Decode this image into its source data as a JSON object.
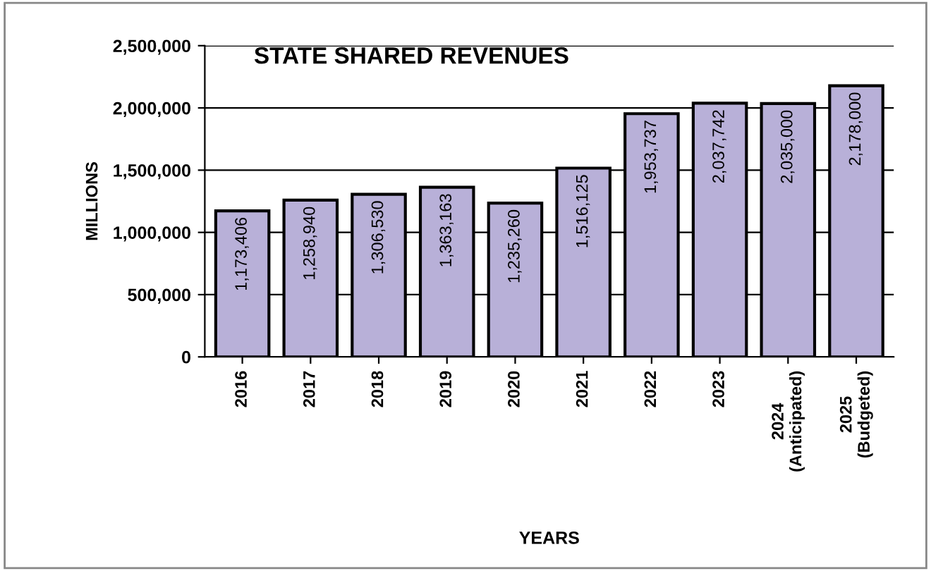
{
  "chart_data": {
    "type": "bar",
    "title": "STATE SHARED REVENUES",
    "xlabel": "YEARS",
    "ylabel": "MILLIONS",
    "categories": [
      "2016",
      "2017",
      "2018",
      "2019",
      "2020",
      "2021",
      "2022",
      "2023",
      "2024\n(Anticipated)",
      "2025\n(Budgeted)"
    ],
    "values": [
      1173406,
      1258940,
      1306530,
      1363163,
      1235260,
      1516125,
      1953737,
      2037742,
      2035000,
      2178000
    ],
    "color": "#b8b0d8",
    "ylim": [
      0,
      2500000
    ],
    "yticks": [
      {
        "value": 0,
        "label": "0"
      },
      {
        "value": 500000,
        "label": "500,000"
      },
      {
        "value": 1000000,
        "label": "1,000,000"
      },
      {
        "value": 1500000,
        "label": "1,500,000"
      },
      {
        "value": 2000000,
        "label": "2,000,000"
      },
      {
        "value": 2500000,
        "label": "2,500,000"
      }
    ],
    "value_labels": [
      "1,173,406",
      "1,258,940",
      "1,306,530",
      "1,363,163",
      "1,235,260",
      "1,516,125",
      "1,953,737",
      "2,037,742",
      "2,035,000",
      "2,178,000"
    ],
    "grid": "y"
  }
}
